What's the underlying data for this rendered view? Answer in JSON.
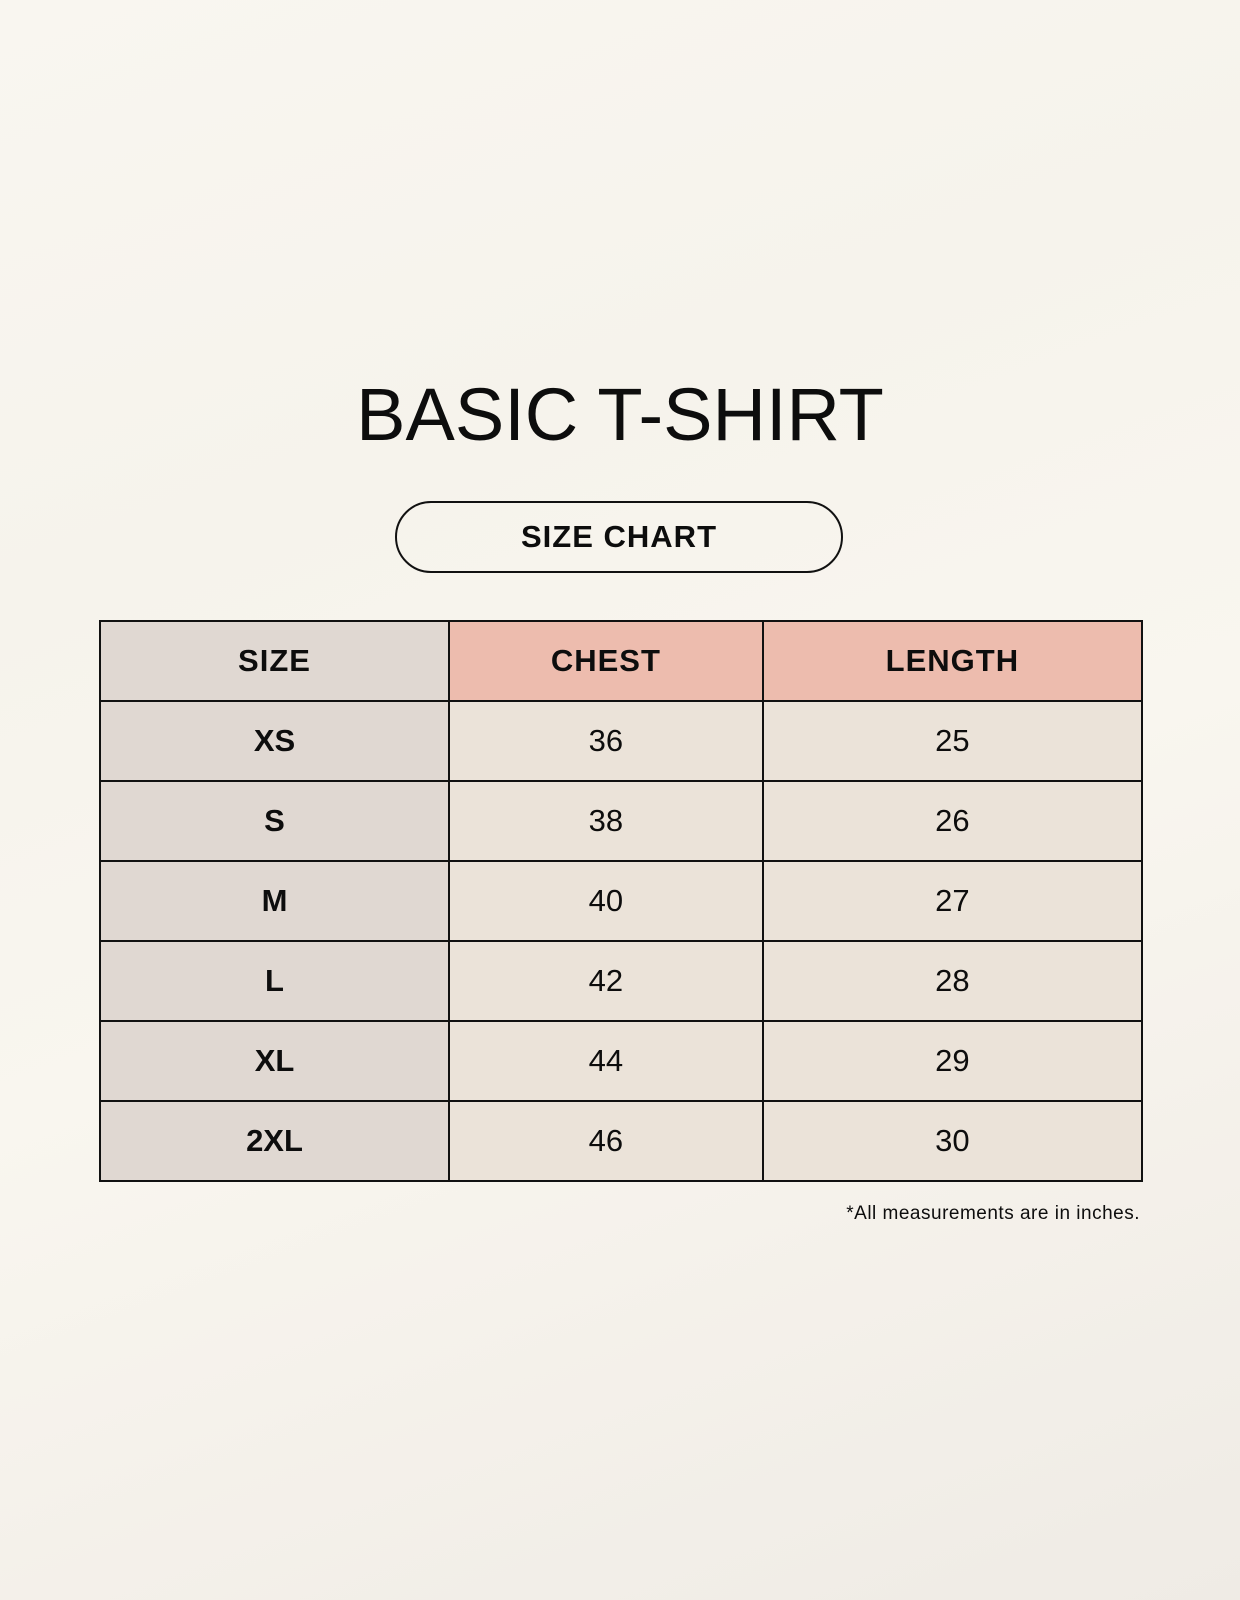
{
  "title": "BASIC T-SHIRT",
  "subtitle": "SIZE CHART",
  "colors": {
    "size_column": "#e0d8d2",
    "header_accent": "#edbcae",
    "cell": "#ebe3d9"
  },
  "table": {
    "headers": [
      "SIZE",
      "CHEST",
      "LENGTH"
    ],
    "rows": [
      [
        "XS",
        "36",
        "25"
      ],
      [
        "S",
        "38",
        "26"
      ],
      [
        "M",
        "40",
        "27"
      ],
      [
        "L",
        "42",
        "28"
      ],
      [
        "XL",
        "44",
        "29"
      ],
      [
        "2XL",
        "46",
        "30"
      ]
    ]
  },
  "footnote": "*All measurements are in inches."
}
